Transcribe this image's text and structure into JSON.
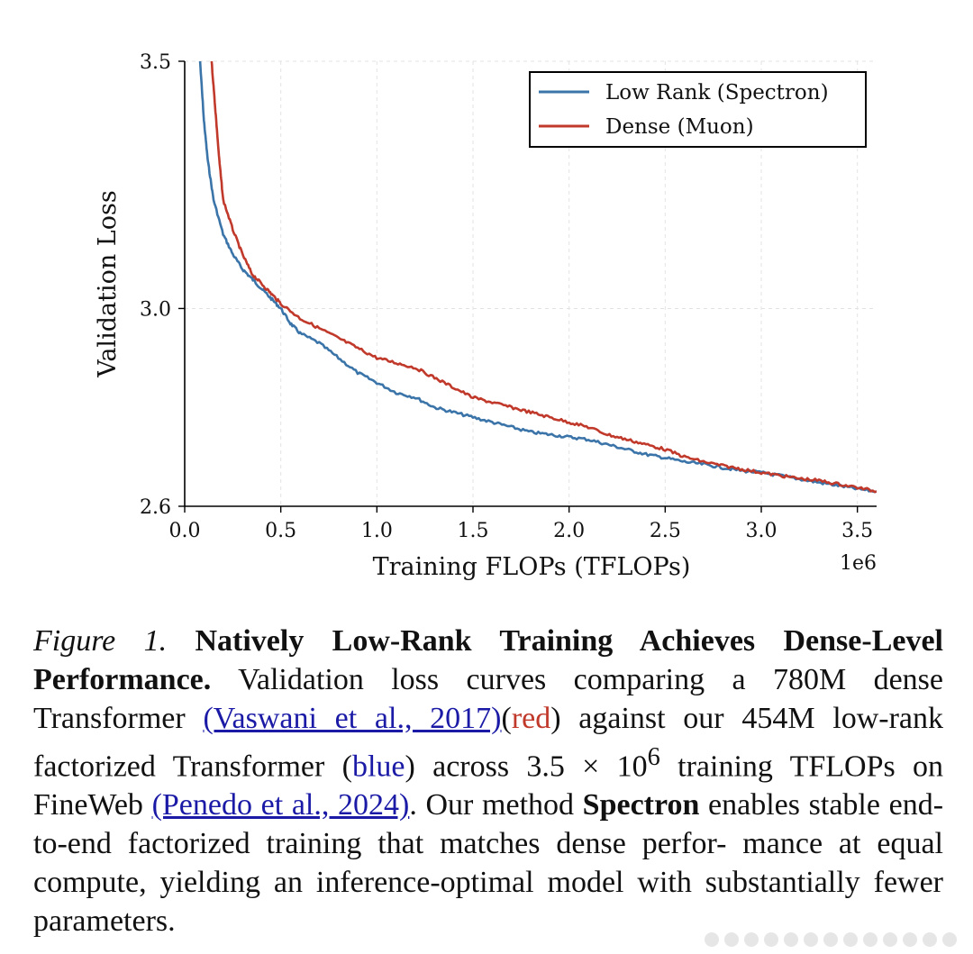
{
  "chart_data": {
    "type": "line",
    "title": "",
    "xlabel": "Training FLOPs (TFLOPs)",
    "ylabel": "Validation Loss",
    "x_offset_label": "1e6",
    "xlim": [
      0,
      3.6
    ],
    "ylim": [
      2.6,
      3.5
    ],
    "x_ticks": [
      0.0,
      0.5,
      1.0,
      1.5,
      2.0,
      2.5,
      3.0,
      3.5
    ],
    "x_tick_labels": [
      "0.0",
      "0.5",
      "1.0",
      "1.5",
      "2.0",
      "2.5",
      "3.0",
      "3.5"
    ],
    "y_ticks": [
      2.6,
      3.0,
      3.5
    ],
    "y_tick_labels": [
      "2.6",
      "3.0",
      "3.5"
    ],
    "grid": true,
    "legend_position": "top-right",
    "series": [
      {
        "name": "Low Rank (Spectron)",
        "color": "#3b74a8",
        "x": [
          0.08,
          0.1,
          0.12,
          0.15,
          0.2,
          0.25,
          0.3,
          0.35,
          0.4,
          0.45,
          0.5,
          0.55,
          0.6,
          0.7,
          0.8,
          0.9,
          1.0,
          1.1,
          1.2,
          1.3,
          1.4,
          1.5,
          1.6,
          1.7,
          1.8,
          1.9,
          2.0,
          2.1,
          2.2,
          2.3,
          2.4,
          2.5,
          2.6,
          2.7,
          2.8,
          2.9,
          3.0,
          3.1,
          3.2,
          3.3,
          3.4,
          3.5,
          3.6
        ],
        "y": [
          3.5,
          3.38,
          3.3,
          3.22,
          3.15,
          3.11,
          3.08,
          3.06,
          3.04,
          3.02,
          3.0,
          2.97,
          2.95,
          2.93,
          2.9,
          2.87,
          2.85,
          2.83,
          2.82,
          2.8,
          2.79,
          2.78,
          2.77,
          2.76,
          2.75,
          2.745,
          2.74,
          2.735,
          2.725,
          2.715,
          2.705,
          2.698,
          2.69,
          2.685,
          2.678,
          2.672,
          2.668,
          2.662,
          2.655,
          2.648,
          2.642,
          2.635,
          2.63
        ]
      },
      {
        "name": "Dense (Muon)",
        "color": "#c0392b",
        "x": [
          0.14,
          0.16,
          0.18,
          0.2,
          0.25,
          0.3,
          0.35,
          0.4,
          0.45,
          0.5,
          0.6,
          0.7,
          0.8,
          0.9,
          1.0,
          1.1,
          1.2,
          1.3,
          1.4,
          1.5,
          1.6,
          1.7,
          1.8,
          1.9,
          2.0,
          2.1,
          2.2,
          2.3,
          2.4,
          2.5,
          2.6,
          2.7,
          2.8,
          2.9,
          3.0,
          3.1,
          3.2,
          3.3,
          3.4,
          3.5,
          3.6
        ],
        "y": [
          3.5,
          3.4,
          3.3,
          3.22,
          3.16,
          3.11,
          3.07,
          3.05,
          3.03,
          3.01,
          2.98,
          2.96,
          2.94,
          2.92,
          2.9,
          2.89,
          2.88,
          2.86,
          2.84,
          2.82,
          2.81,
          2.8,
          2.79,
          2.78,
          2.77,
          2.76,
          2.745,
          2.735,
          2.725,
          2.715,
          2.7,
          2.69,
          2.682,
          2.675,
          2.668,
          2.662,
          2.656,
          2.652,
          2.645,
          2.638,
          2.63
        ]
      }
    ]
  },
  "caption": {
    "figure_label": "Figure 1.",
    "title": "Natively Low-Rank Training Achieves Dense-Level Performance.",
    "text_1": "Validation loss curves comparing a 780M dense Transformer",
    "cite_1": "(Vaswani et al., 2017)",
    "open_paren": "(",
    "red_word": "red",
    "text_2": ") against our 454M low-rank factorized Transformer (",
    "blue_word": "blue",
    "text_3": ") across 3.5 × 10",
    "superscript": "6",
    "text_4": "training TFLOPs on FineWeb",
    "cite_2": "(Penedo et al., 2024)",
    "text_5": ". Our method",
    "method_name": "Spectron",
    "text_6": "enables stable end-to-end factorized training that matches dense perfor- mance at equal compute, yielding an inference-optimal model with substantially fewer parameters."
  }
}
